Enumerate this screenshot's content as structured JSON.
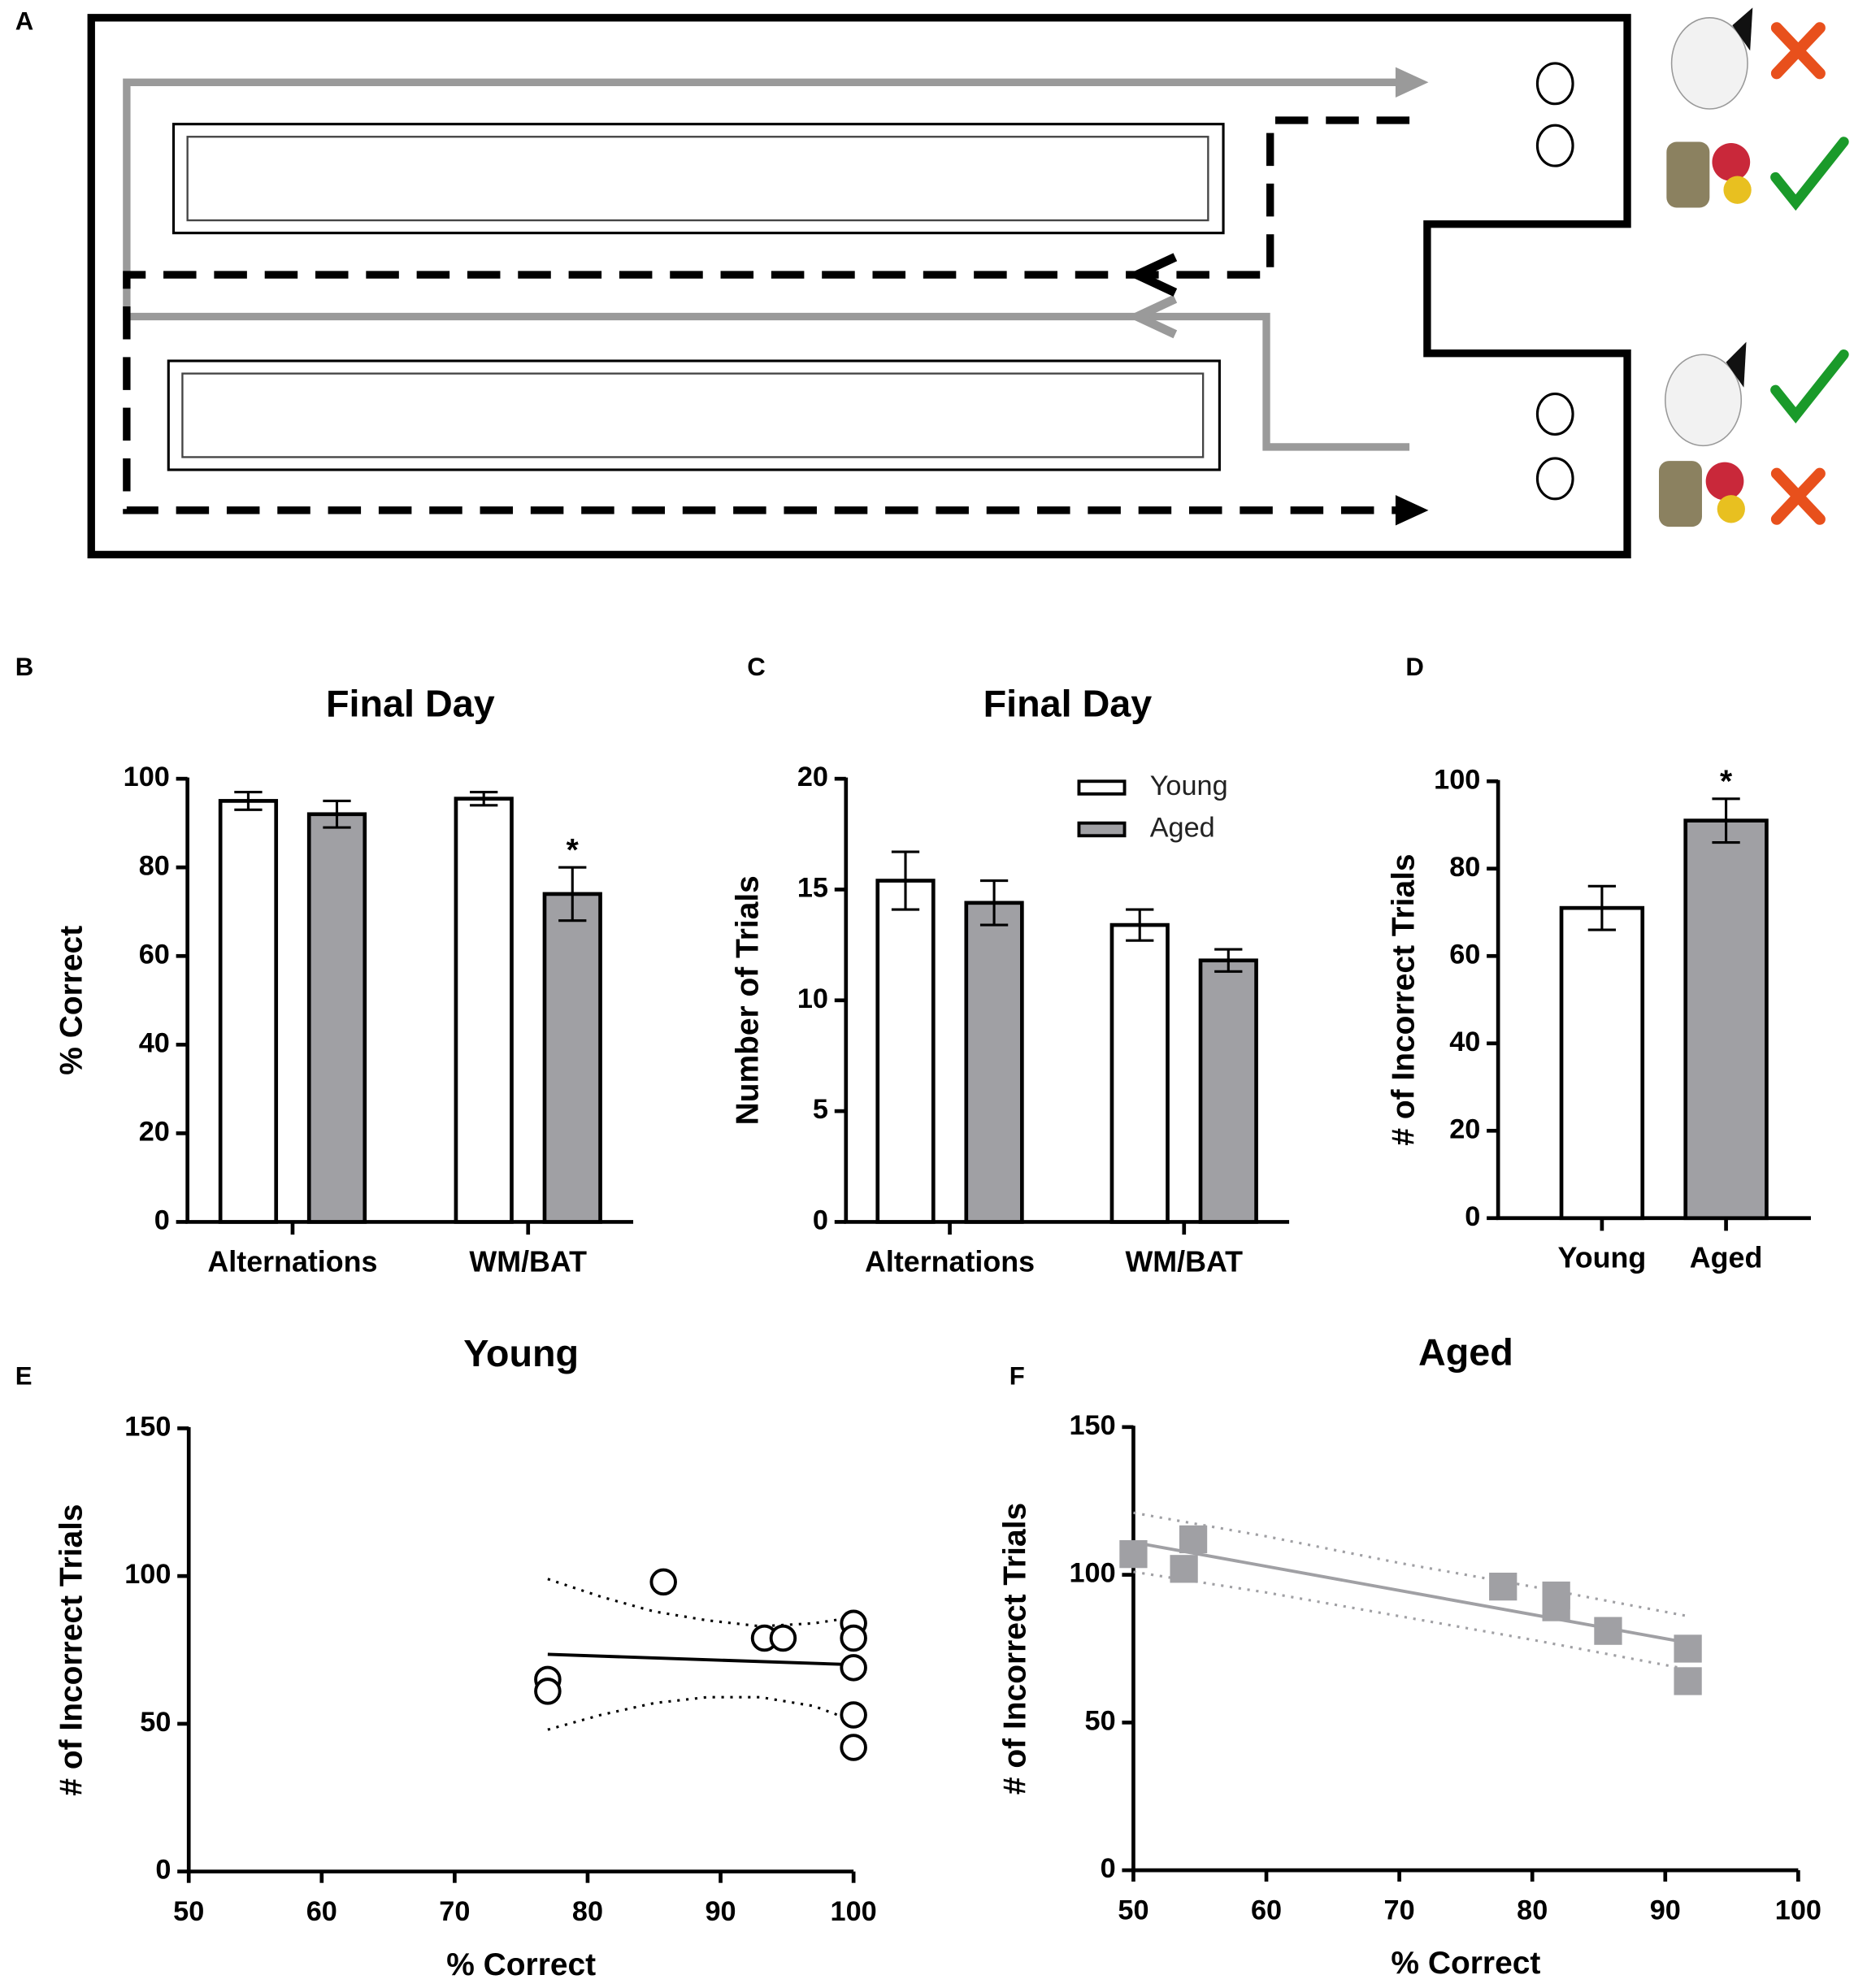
{
  "diagram": {
    "panel": "A"
  },
  "chart_data": [
    {
      "panel": "B",
      "type": "bar",
      "title": "Final Day",
      "y_label": "% Correct",
      "categories": [
        "Alternations",
        "WM/BAT"
      ],
      "series": [
        {
          "name": "Young",
          "color": "#ffffff",
          "values": [
            95,
            95.5
          ],
          "errors": [
            2,
            1.5
          ]
        },
        {
          "name": "Aged",
          "color": "#a0a0a4",
          "values": [
            92,
            74
          ],
          "errors": [
            3,
            6
          ]
        }
      ],
      "ylim": [
        0,
        100
      ],
      "yticks": [
        0,
        20,
        40,
        60,
        80,
        100
      ],
      "annotations": [
        {
          "text": "*",
          "series": 1,
          "category": 1
        }
      ]
    },
    {
      "panel": "C",
      "type": "bar",
      "title": "Final Day",
      "y_label": "Number of Trials",
      "categories": [
        "Alternations",
        "WM/BAT"
      ],
      "series": [
        {
          "name": "Young",
          "color": "#ffffff",
          "values": [
            15.4,
            13.4
          ],
          "errors": [
            1.3,
            0.7
          ]
        },
        {
          "name": "Aged",
          "color": "#a0a0a4",
          "values": [
            14.4,
            11.8
          ],
          "errors": [
            1.0,
            0.5
          ]
        }
      ],
      "ylim": [
        0,
        20
      ],
      "yticks": [
        0,
        5,
        10,
        15,
        20
      ],
      "legend": "top-right"
    },
    {
      "panel": "D",
      "type": "bar",
      "y_label": "# of Incorrect Trials",
      "categories": [
        "Young",
        "Aged"
      ],
      "values": [
        71,
        91
      ],
      "errors": [
        5,
        5
      ],
      "colors": [
        "#ffffff",
        "#a0a0a4"
      ],
      "ylim": [
        0,
        100
      ],
      "yticks": [
        0,
        20,
        40,
        60,
        80,
        100
      ],
      "annotations": [
        {
          "text": "*",
          "category": 1
        }
      ]
    },
    {
      "panel": "E",
      "type": "scatter",
      "title": "Young",
      "x_label": "% Correct",
      "y_label": "# of Incorrect Trials",
      "marker": "circle",
      "color": "#000000",
      "x": [
        77,
        77,
        85.7,
        93.3,
        94.7,
        100,
        100,
        100,
        100,
        100
      ],
      "values": [
        65,
        61,
        98,
        79,
        79,
        84,
        79,
        69,
        53,
        42
      ],
      "fit": {
        "x": [
          77,
          100
        ],
        "values": [
          73.5,
          70
        ]
      },
      "band_upper": {
        "x": [
          77,
          81,
          85,
          89,
          93,
          97,
          100
        ],
        "values": [
          99,
          93,
          88,
          85,
          83,
          84,
          86
        ]
      },
      "band_lower": {
        "x": [
          77,
          81,
          85,
          89,
          93,
          97,
          100
        ],
        "values": [
          48,
          53,
          57,
          59,
          59,
          56,
          51
        ]
      },
      "xlim": [
        50,
        100
      ],
      "xticks": [
        50,
        60,
        70,
        80,
        90,
        100
      ],
      "ylim": [
        0,
        150
      ],
      "yticks": [
        0,
        50,
        100,
        150
      ]
    },
    {
      "panel": "F",
      "type": "scatter",
      "title": "Aged",
      "x_label": "% Correct",
      "y_label": "# of Incorrect Trials",
      "marker": "square",
      "color": "#a0a0a4",
      "x": [
        50,
        53.8,
        54.5,
        77.8,
        81.8,
        81.8,
        85.7,
        91.7,
        91.7
      ],
      "values": [
        107,
        102,
        112,
        96,
        93,
        89,
        81,
        75,
        64
      ],
      "fit": {
        "x": [
          50,
          91.7
        ],
        "values": [
          111,
          77
        ]
      },
      "band_upper": {
        "x": [
          50,
          60,
          70,
          80,
          91.7
        ],
        "values": [
          121,
          113,
          104,
          96,
          86
        ]
      },
      "band_lower": {
        "x": [
          50,
          60,
          70,
          80,
          91.7
        ],
        "values": [
          101,
          94,
          86,
          78,
          68
        ]
      },
      "xlim": [
        50,
        100
      ],
      "xticks": [
        50,
        60,
        70,
        80,
        90,
        100
      ],
      "ylim": [
        0,
        150
      ],
      "yticks": [
        0,
        50,
        100,
        150
      ]
    }
  ]
}
